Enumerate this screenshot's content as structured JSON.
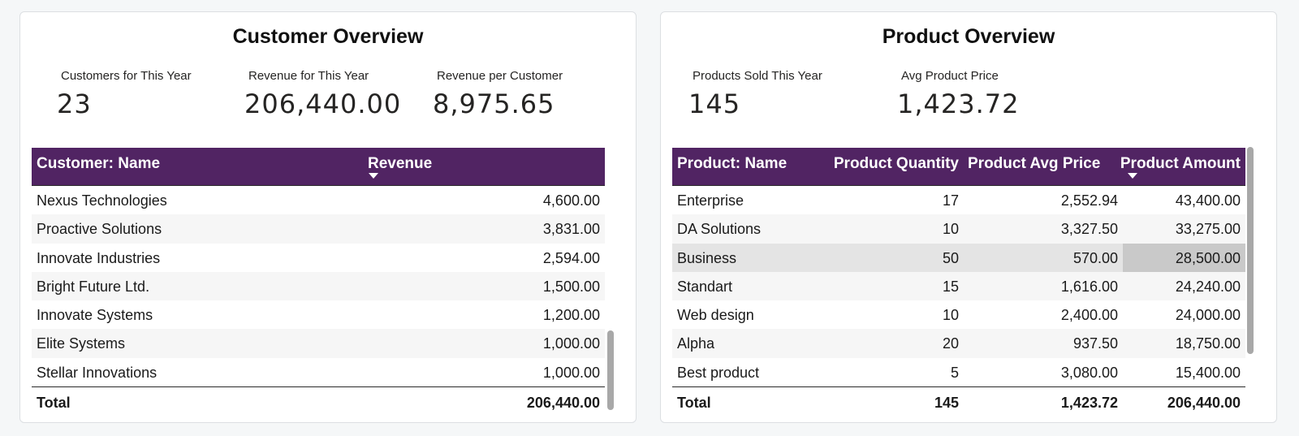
{
  "customer": {
    "title": "Customer Overview",
    "kpis": [
      {
        "label": "Customers for This Year",
        "value": "23"
      },
      {
        "label": "Revenue for This Year",
        "value": "206,440.00"
      },
      {
        "label": "Revenue per Customer",
        "value": "8,975.65"
      }
    ],
    "table": {
      "headers": {
        "name": "Customer: Name",
        "revenue": "Revenue"
      },
      "rows": [
        {
          "name": "Nexus Technologies",
          "revenue": "4,600.00"
        },
        {
          "name": "Proactive Solutions",
          "revenue": "3,831.00"
        },
        {
          "name": "Innovate Industries",
          "revenue": "2,594.00"
        },
        {
          "name": "Bright Future Ltd.",
          "revenue": "1,500.00"
        },
        {
          "name": "Innovate Systems",
          "revenue": "1,200.00"
        },
        {
          "name": "Elite Systems",
          "revenue": "1,000.00"
        },
        {
          "name": "Stellar Innovations",
          "revenue": "1,000.00"
        }
      ],
      "total": {
        "label": "Total",
        "revenue": "206,440.00"
      }
    }
  },
  "product": {
    "title": "Product Overview",
    "kpis": [
      {
        "label": "Products Sold This Year",
        "value": "145"
      },
      {
        "label": "Avg Product Price",
        "value": "1,423.72"
      }
    ],
    "table": {
      "headers": {
        "name": "Product: Name",
        "quantity": "Product Quantity",
        "avg_price": "Product Avg Price",
        "amount": "Product Amount"
      },
      "rows": [
        {
          "name": "Enterprise",
          "quantity": "17",
          "avg_price": "2,552.94",
          "amount": "43,400.00"
        },
        {
          "name": "DA Solutions",
          "quantity": "10",
          "avg_price": "3,327.50",
          "amount": "33,275.00"
        },
        {
          "name": "Business",
          "quantity": "50",
          "avg_price": "570.00",
          "amount": "28,500.00"
        },
        {
          "name": "Standart",
          "quantity": "15",
          "avg_price": "1,616.00",
          "amount": "24,240.00"
        },
        {
          "name": "Web design",
          "quantity": "10",
          "avg_price": "2,400.00",
          "amount": "24,000.00"
        },
        {
          "name": "Alpha",
          "quantity": "20",
          "avg_price": "937.50",
          "amount": "18,750.00"
        },
        {
          "name": "Best product",
          "quantity": "5",
          "avg_price": "3,080.00",
          "amount": "15,400.00"
        }
      ],
      "total": {
        "label": "Total",
        "quantity": "145",
        "avg_price": "1,423.72",
        "amount": "206,440.00"
      }
    }
  }
}
